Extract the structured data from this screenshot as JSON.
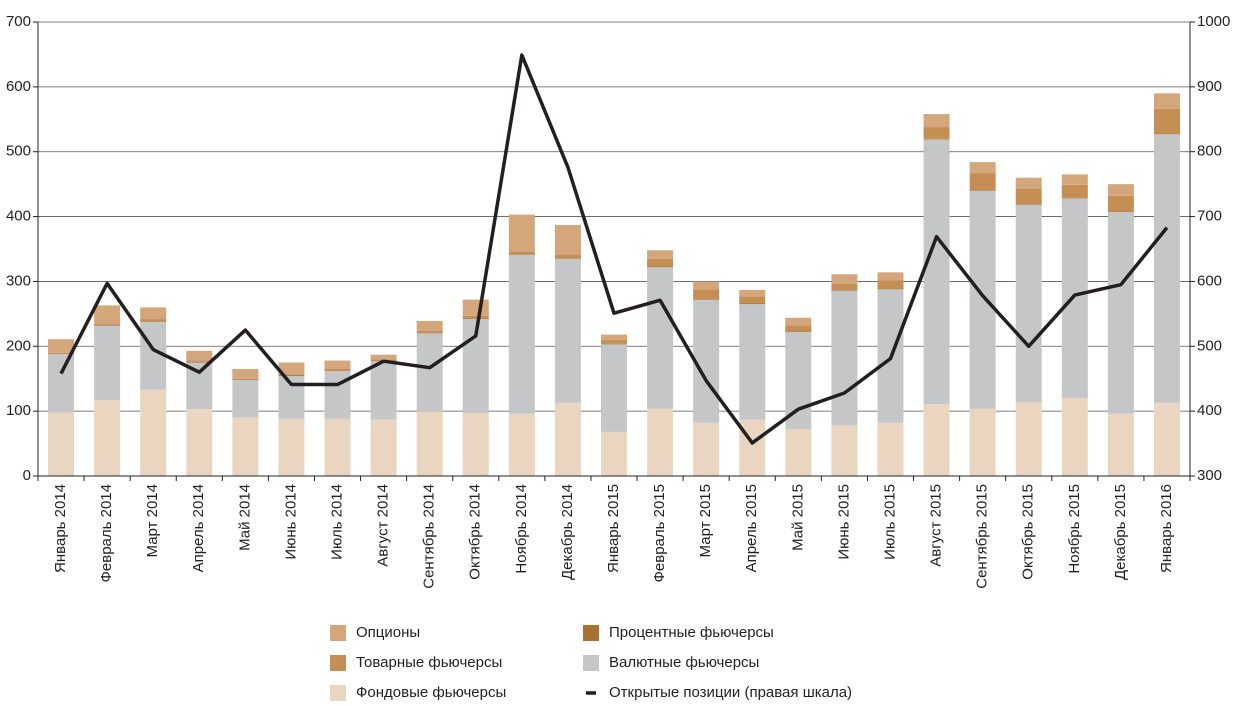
{
  "chart_data": {
    "type": "bar",
    "stacked": true,
    "categories": [
      "Январь 2014",
      "Февраль 2014",
      "Март 2014",
      "Апрель 2014",
      "Май 2014",
      "Июнь 2014",
      "Июль 2014",
      "Август 2014",
      "Сентябрь 2014",
      "Октябрь 2014",
      "Ноябрь 2014",
      "Декабрь 2014",
      "Январь 2015",
      "Февраль 2015",
      "Март 2015",
      "Апрель 2015",
      "Май 2015",
      "Июнь 2015",
      "Июль 2015",
      "Август 2015",
      "Сентябрь 2015",
      "Октябрь 2015",
      "Ноябрь 2015",
      "Декабрь 2015",
      "Январь 2016"
    ],
    "series": [
      {
        "name": "Фондовые фьючерсы",
        "color": "#ead6c0",
        "values": [
          98,
          117,
          133,
          103,
          90,
          88,
          88,
          87,
          100,
          97,
          96,
          113,
          68,
          104,
          82,
          87,
          72,
          78,
          82,
          111,
          104,
          114,
          120,
          96,
          113
        ]
      },
      {
        "name": "Валютные фьючерсы",
        "color": "#c5c6c8",
        "values": [
          90,
          115,
          105,
          72,
          58,
          66,
          74,
          90,
          120,
          145,
          245,
          222,
          135,
          218,
          190,
          178,
          150,
          208,
          206,
          408,
          336,
          304,
          308,
          311,
          414
        ]
      },
      {
        "name": "Процентные фьючерсы",
        "color": "#a9712f",
        "values": [
          0,
          1,
          1,
          1,
          1,
          1,
          1,
          1,
          1,
          1,
          1,
          1,
          1,
          1,
          1,
          1,
          1,
          1,
          1,
          1,
          1,
          1,
          1,
          1,
          1
        ]
      },
      {
        "name": "Товарные фьючерсы",
        "color": "#c48e55",
        "values": [
          2,
          2,
          3,
          2,
          1,
          2,
          2,
          2,
          3,
          4,
          4,
          6,
          6,
          12,
          15,
          11,
          9,
          9,
          13,
          18,
          26,
          24,
          20,
          24,
          38
        ]
      },
      {
        "name": "Опционы",
        "color": "#d3a77b",
        "values": [
          21,
          28,
          18,
          15,
          15,
          18,
          13,
          7,
          15,
          25,
          57,
          45,
          8,
          13,
          12,
          10,
          12,
          15,
          12,
          20,
          17,
          17,
          16,
          18,
          24
        ]
      },
      {
        "name": "Открытые позиции (правая шкала)",
        "color": "#231f20",
        "type": "line",
        "axis": "y2",
        "values": [
          458,
          597,
          495,
          460,
          525,
          441,
          441,
          477,
          467,
          516,
          949,
          776,
          551,
          571,
          447,
          351,
          403,
          428,
          481,
          669,
          578,
          500,
          579,
          595,
          683
        ]
      }
    ],
    "ylim": [
      0,
      700
    ],
    "yticks": [
      0,
      100,
      200,
      300,
      400,
      500,
      600,
      700
    ],
    "y2lim": [
      300,
      1000
    ],
    "y2ticks": [
      300,
      400,
      500,
      600,
      700,
      800,
      900,
      1000
    ],
    "grid": true,
    "legend": "bottom"
  }
}
